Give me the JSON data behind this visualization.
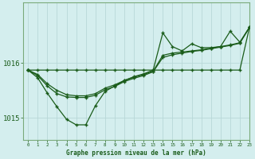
{
  "title": "Graphe pression niveau de la mer (hPa)",
  "bg_color": "#d4eeee",
  "grid_color": "#b8d8d8",
  "line_color": "#1a5c1a",
  "marker_color": "#1a5c1a",
  "xlim": [
    -0.5,
    23
  ],
  "ylim": [
    1014.6,
    1017.1
  ],
  "yticks": [
    1015,
    1016
  ],
  "xticks": [
    0,
    1,
    2,
    3,
    4,
    5,
    6,
    7,
    8,
    9,
    10,
    11,
    12,
    13,
    14,
    15,
    16,
    17,
    18,
    19,
    20,
    21,
    22,
    23
  ],
  "series": {
    "flat": [
      1015.87,
      1015.87,
      1015.87,
      1015.87,
      1015.87,
      1015.87,
      1015.87,
      1015.87,
      1015.87,
      1015.87,
      1015.87,
      1015.87,
      1015.87,
      1015.87,
      1015.87,
      1015.87,
      1015.87,
      1015.87,
      1015.87,
      1015.87,
      1015.87,
      1015.87,
      1015.87,
      1016.65
    ],
    "dip": [
      1015.87,
      1015.73,
      1015.45,
      1015.2,
      1014.97,
      1014.87,
      1014.87,
      1015.22,
      1015.48,
      1015.58,
      1015.68,
      1015.75,
      1015.8,
      1015.87,
      1016.55,
      1016.3,
      1016.22,
      1016.35,
      1016.28,
      1016.28,
      1016.3,
      1016.58,
      1016.38,
      1016.65
    ],
    "trend1": [
      1015.87,
      1015.79,
      1015.62,
      1015.5,
      1015.42,
      1015.4,
      1015.4,
      1015.44,
      1015.54,
      1015.6,
      1015.68,
      1015.74,
      1015.79,
      1015.85,
      1016.14,
      1016.18,
      1016.2,
      1016.22,
      1016.24,
      1016.27,
      1016.3,
      1016.33,
      1016.37,
      1016.65
    ],
    "trend2": [
      1015.87,
      1015.77,
      1015.58,
      1015.44,
      1015.38,
      1015.37,
      1015.37,
      1015.41,
      1015.51,
      1015.57,
      1015.66,
      1015.72,
      1015.77,
      1015.84,
      1016.1,
      1016.15,
      1016.18,
      1016.21,
      1016.23,
      1016.26,
      1016.29,
      1016.32,
      1016.36,
      1016.65
    ]
  }
}
